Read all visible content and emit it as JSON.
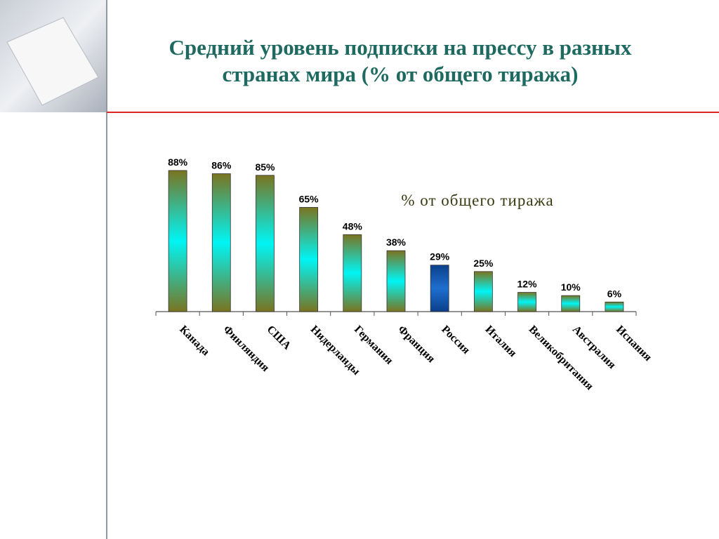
{
  "chart_data": {
    "type": "bar",
    "title": [
      "Средний уровень подписки на прессу в разных",
      "странах мира (% от общего тиража)"
    ],
    "categories": [
      "Канада",
      "Финляндия",
      "США",
      "Нидерланды",
      "Германия",
      "Франция",
      "Россия",
      "Италия",
      "Великобритания",
      "Австралия",
      "Испания"
    ],
    "series": [
      {
        "name": "% от общего тиража",
        "values": [
          88,
          86,
          85,
          65,
          48,
          38,
          29,
          25,
          12,
          10,
          6
        ],
        "value_labels": [
          "88%",
          "86%",
          "85%",
          "65%",
          "48%",
          "38%",
          "29%",
          "25%",
          "12%",
          "10%",
          "6%"
        ],
        "colors": [
          "#00f5f5",
          "#00f5f5",
          "#00f5f5",
          "#00f5f5",
          "#00f5f5",
          "#00f5f5",
          "#1e6fd0",
          "#00f5f5",
          "#00f5f5",
          "#00f5f5",
          "#00f5f5"
        ],
        "edge_color": "#7a7420"
      }
    ]
  }
}
